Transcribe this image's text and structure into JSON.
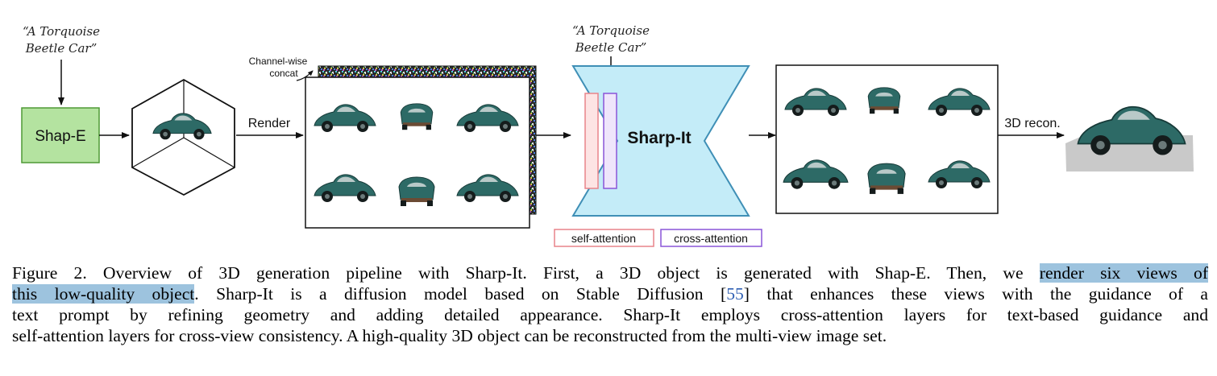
{
  "figure": {
    "prompt_left": [
      "“A Torquoise",
      "Beetle Car”"
    ],
    "prompt_right": [
      "“A Torquoise",
      "Beetle Car”"
    ],
    "shap_e_label": "Shap-E",
    "render_label": "Render",
    "concat_label": [
      "Channel-wise",
      "concat"
    ],
    "model_label": "Sharp-It",
    "recon_label": "3D recon.",
    "legend": {
      "self_attention": "self-attention",
      "cross_attention": "cross-attention"
    },
    "colors": {
      "shap_e_fill": "#b4e3a0",
      "shap_e_border": "#4f9a35",
      "model_fill": "#c4ecf8",
      "model_border": "#3f8fb6",
      "self_attention": "#e8838a",
      "cross_attention": "#8a55d8",
      "car_teal": "#2d6a66",
      "highlight": "#9dc3de"
    }
  },
  "caption": {
    "line1_a": "Figure 2.  Overview of 3D generation pipeline with Sharp-It.  First, a 3D object is generated with Shap-E. Then, we ",
    "line1_hl": "render six views of",
    "line2_hl": "this low-quality object",
    "line2_a": ".  Sharp-It is a diffusion model based on Stable Diffusion [",
    "ref": "55",
    "line2_b": "] that enhances these views with the guidance of a",
    "line3": "text prompt by refining geometry and adding detailed appearance.  Sharp-It employs cross-attention layers for text-based guidance and",
    "line4": "self-attention layers for cross-view consistency. A high-quality 3D object can be reconstructed from the multi-view image set."
  }
}
